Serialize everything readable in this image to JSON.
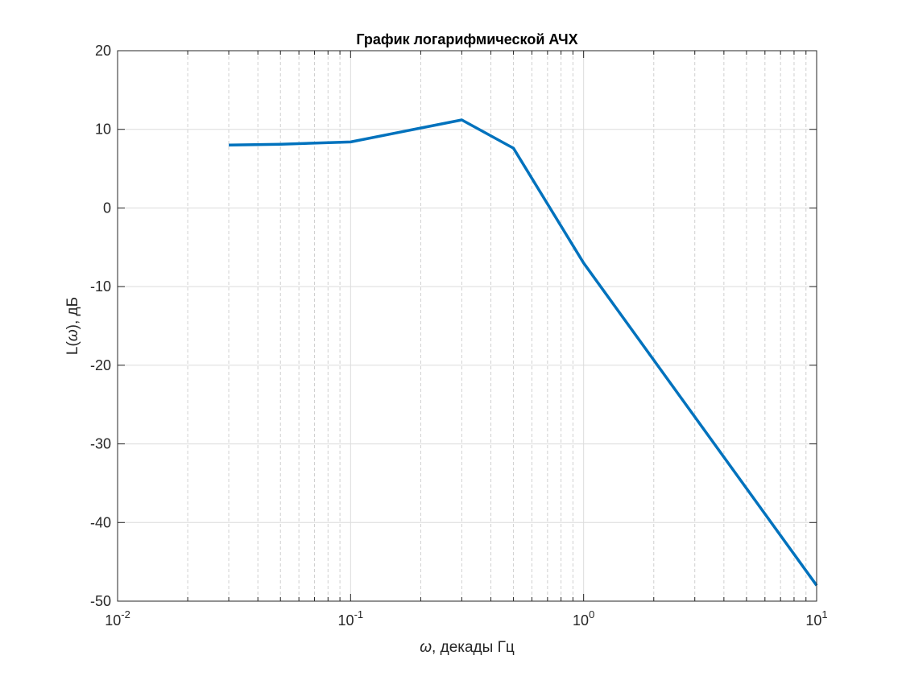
{
  "chart_data": {
    "type": "line",
    "title": "График логарифмической АЧХ",
    "xlabel_symbol": "ω",
    "xlabel_rest": ", декады Гц",
    "ylabel_prefix": "L(",
    "ylabel_symbol": "ω",
    "ylabel_suffix": "), дБ",
    "xscale": "log",
    "xlim": [
      0.01,
      10
    ],
    "ylim": [
      -50,
      20
    ],
    "grid": "on (major solid, minor dotted on x)",
    "x_ticks": [
      {
        "base": "10",
        "exp": "-2",
        "value": 0.01
      },
      {
        "base": "10",
        "exp": "-1",
        "value": 0.1
      },
      {
        "base": "10",
        "exp": "0",
        "value": 1
      },
      {
        "base": "10",
        "exp": "1",
        "value": 10
      }
    ],
    "y_ticks": [
      "20",
      "10",
      "0",
      "-10",
      "-20",
      "-30",
      "-40",
      "-50"
    ],
    "series": [
      {
        "color": "#0072BD",
        "x": [
          0.03,
          0.05,
          0.1,
          0.3,
          0.5,
          1,
          10
        ],
        "y": [
          8.0,
          8.1,
          8.4,
          11.2,
          7.6,
          -7.0,
          -48.0
        ]
      }
    ]
  }
}
